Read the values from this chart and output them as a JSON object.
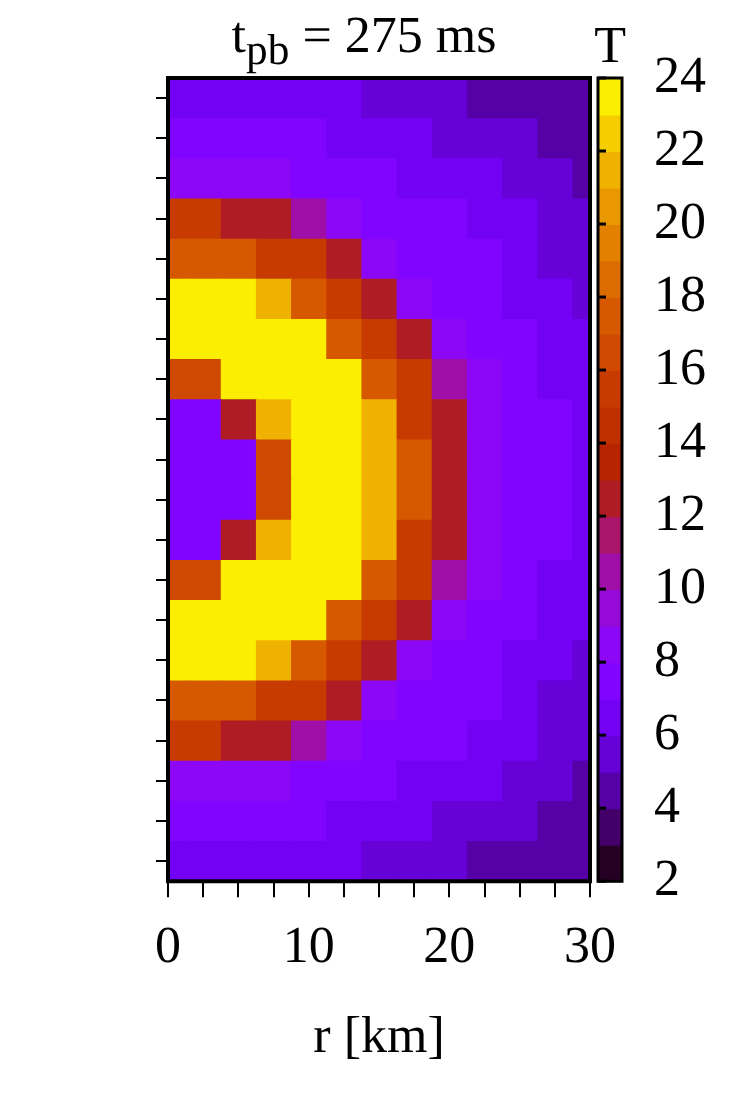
{
  "chart_data": {
    "type": "heatmap",
    "title": "t$_{pb}$ = 275 ms",
    "xlabel": "r [km]",
    "clabel": "T",
    "categories": [
      "0",
      null,
      null,
      null,
      "10",
      null,
      null,
      null,
      "20",
      null,
      null,
      null,
      "30"
    ],
    "y_categories": [
      null,
      null,
      null,
      null,
      null,
      null,
      null,
      null,
      null,
      null,
      null,
      null,
      null,
      null,
      null,
      null,
      null,
      null,
      null,
      null
    ],
    "cells": [
      [
        6,
        6,
        6,
        6,
        6,
        6,
        5,
        5,
        5,
        4,
        4,
        4,
        4
      ],
      [
        7,
        7,
        7,
        7,
        7,
        6,
        6,
        6,
        5,
        5,
        5,
        4,
        4
      ],
      [
        8,
        8,
        8,
        8,
        7,
        7,
        7,
        6,
        6,
        6,
        5,
        5,
        4
      ],
      [
        15,
        15,
        12,
        12,
        10,
        8,
        7,
        7,
        7,
        6,
        6,
        5,
        5
      ],
      [
        17,
        17,
        17,
        15,
        15,
        12,
        8,
        7,
        7,
        7,
        6,
        5,
        5
      ],
      [
        23,
        23,
        23,
        21,
        17,
        15,
        12,
        8,
        7,
        7,
        6,
        6,
        5
      ],
      [
        23,
        23,
        23,
        23,
        23,
        17,
        15,
        12,
        8,
        7,
        7,
        6,
        6
      ],
      [
        16,
        16,
        23,
        23,
        23,
        23,
        17,
        15,
        10,
        8,
        7,
        6,
        6
      ],
      [
        7,
        7,
        12,
        21,
        23,
        23,
        21,
        15,
        12,
        8,
        7,
        7,
        6
      ],
      [
        7,
        7,
        7,
        16,
        23,
        23,
        21,
        17,
        12,
        8,
        7,
        7,
        6
      ],
      [
        7,
        7,
        7,
        16,
        23,
        23,
        21,
        17,
        12,
        8,
        7,
        7,
        6
      ],
      [
        7,
        7,
        12,
        21,
        23,
        23,
        21,
        15,
        12,
        8,
        7,
        7,
        6
      ],
      [
        16,
        16,
        23,
        23,
        23,
        23,
        17,
        15,
        10,
        8,
        7,
        6,
        6
      ],
      [
        23,
        23,
        23,
        23,
        23,
        17,
        15,
        12,
        8,
        7,
        7,
        6,
        6
      ],
      [
        23,
        23,
        23,
        21,
        17,
        15,
        12,
        8,
        7,
        7,
        6,
        6,
        5
      ],
      [
        17,
        17,
        17,
        15,
        15,
        12,
        8,
        7,
        7,
        7,
        6,
        5,
        5
      ],
      [
        15,
        15,
        12,
        12,
        10,
        8,
        7,
        7,
        7,
        6,
        6,
        5,
        5
      ],
      [
        8,
        8,
        8,
        8,
        7,
        7,
        7,
        6,
        6,
        6,
        5,
        5,
        4
      ],
      [
        7,
        7,
        7,
        7,
        7,
        6,
        6,
        6,
        5,
        5,
        5,
        4,
        4
      ],
      [
        6,
        6,
        6,
        6,
        6,
        6,
        5,
        5,
        5,
        4,
        4,
        4,
        4
      ]
    ],
    "clim": [
      2,
      24
    ],
    "cticks": [
      2,
      4,
      6,
      8,
      10,
      12,
      14,
      16,
      18,
      20,
      22,
      24
    ],
    "tick_labels": "x"
  }
}
